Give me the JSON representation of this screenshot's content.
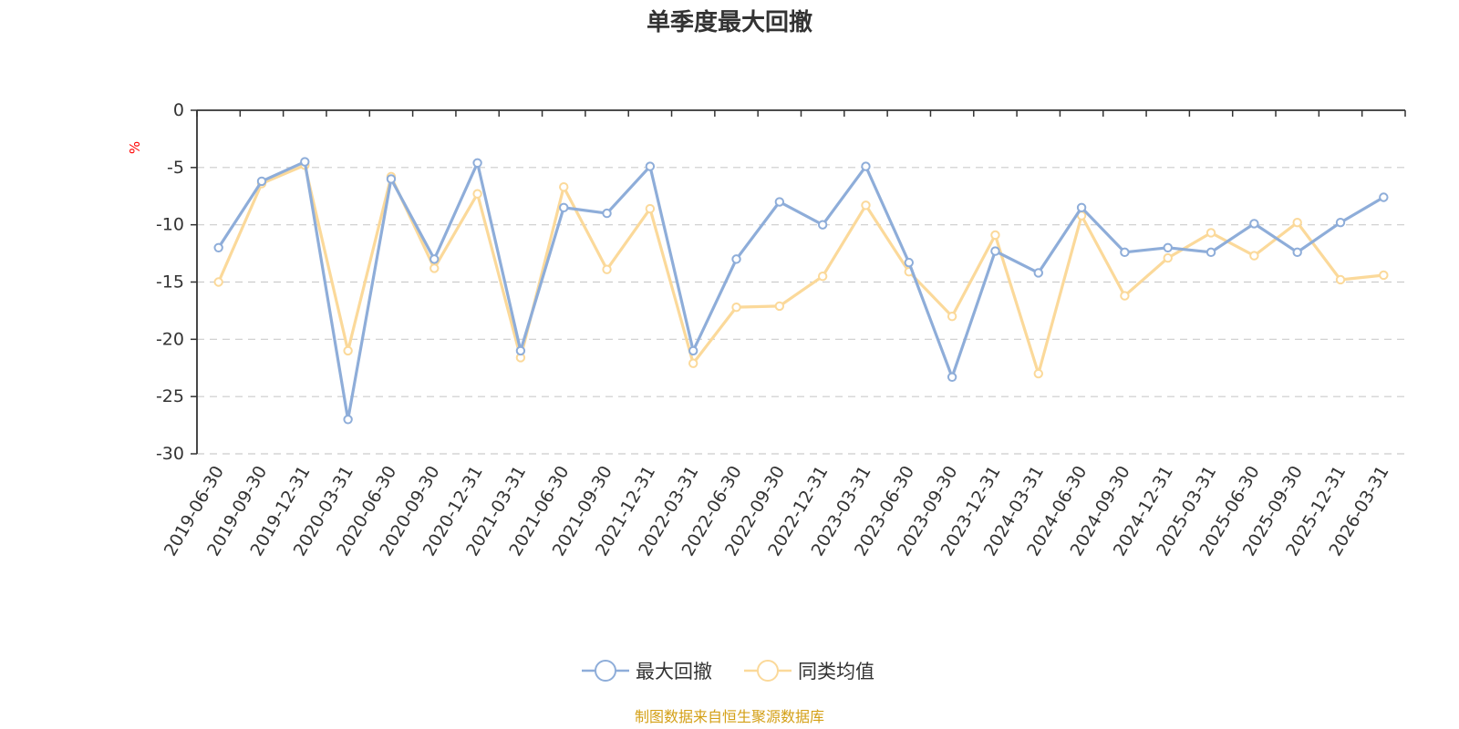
{
  "chart_data": {
    "type": "line",
    "title": "单季度最大回撤",
    "ylabel": "%",
    "ylim": [
      -30,
      0
    ],
    "yticks": [
      0,
      -5,
      -10,
      -15,
      -20,
      -25,
      -30
    ],
    "grid": true,
    "legend_position": "bottom-center",
    "categories": [
      "2019-06-30",
      "2019-09-30",
      "2019-12-31",
      "2020-03-31",
      "2020-06-30",
      "2020-09-30",
      "2020-12-31",
      "2021-03-31",
      "2021-06-30",
      "2021-09-30",
      "2021-12-31",
      "2022-03-31",
      "2022-06-30",
      "2022-09-30",
      "2022-12-31",
      "2023-03-31",
      "2023-06-30",
      "2023-09-30",
      "2023-12-31",
      "2024-03-31",
      "2024-06-30",
      "2024-09-30",
      "2024-12-31",
      "2025-03-31",
      "2025-06-30",
      "2025-09-30",
      "2025-12-31",
      "2026-03-31"
    ],
    "series": [
      {
        "name": "最大回撤",
        "color": "#8eadd9",
        "values": [
          -12.0,
          -6.2,
          -4.5,
          -27.0,
          -6.0,
          -13.0,
          -4.6,
          -21.0,
          -8.5,
          -9.0,
          -4.9,
          -21.0,
          -13.0,
          -8.0,
          -10.0,
          -4.9,
          -13.3,
          -23.3,
          -12.3,
          -14.2,
          -8.5,
          -12.4,
          -12.0,
          -12.4,
          -9.9,
          -12.4,
          -9.8,
          -7.6
        ]
      },
      {
        "name": "同类均值",
        "color": "#fbd99a",
        "values": [
          -15.0,
          -6.4,
          -4.8,
          -21.0,
          -5.8,
          -13.8,
          -7.3,
          -21.6,
          -6.7,
          -13.9,
          -8.6,
          -22.1,
          -17.2,
          -17.1,
          -14.5,
          -8.3,
          -14.1,
          -18.0,
          -10.9,
          -23.0,
          -9.2,
          -16.2,
          -12.9,
          -10.7,
          -12.7,
          -9.8,
          -14.8,
          -14.4
        ]
      }
    ]
  },
  "source_text": "制图数据来自恒生聚源数据库",
  "colors": {
    "axis": "#333333",
    "grid": "#cccccc",
    "unit": "#ff0000",
    "source": "#d4a017"
  }
}
